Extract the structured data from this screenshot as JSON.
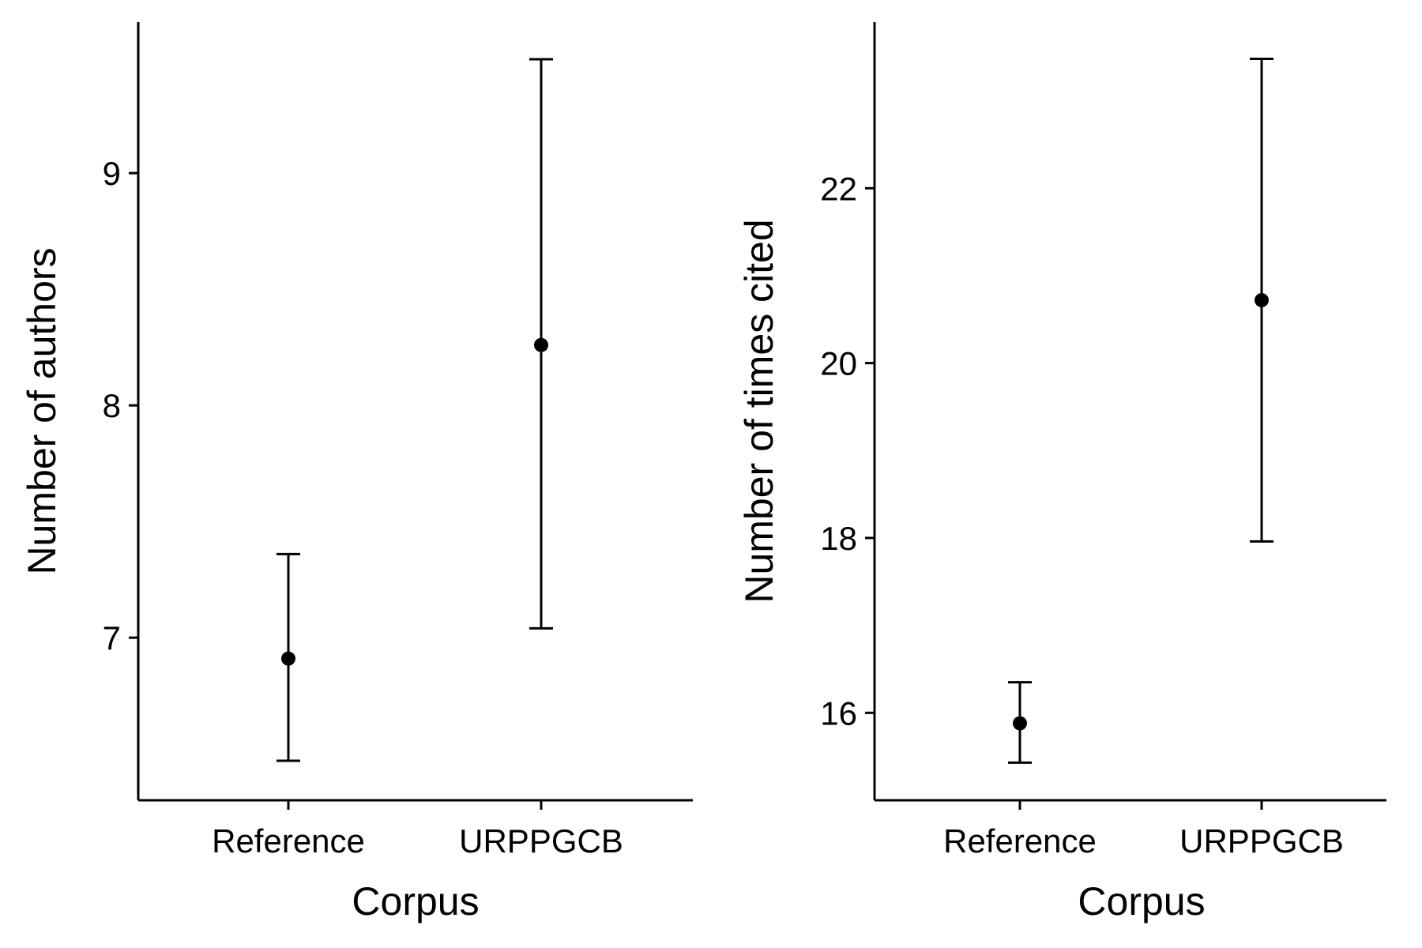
{
  "chart_data": [
    {
      "type": "errorbar",
      "xlabel": "Corpus",
      "ylabel": "Number of authors",
      "categories": [
        "Reference",
        "URPPGCB"
      ],
      "points": [
        {
          "category": "Reference",
          "mean": 6.91,
          "lower": 6.47,
          "upper": 7.36
        },
        {
          "category": "URPPGCB",
          "mean": 8.26,
          "lower": 7.04,
          "upper": 9.49
        }
      ],
      "yticks": [
        7,
        8,
        9
      ],
      "ylim": [
        6.3,
        9.65
      ],
      "grid": false,
      "legend": "none"
    },
    {
      "type": "errorbar",
      "xlabel": "Corpus",
      "ylabel": "Number of times cited",
      "categories": [
        "Reference",
        "URPPGCB"
      ],
      "points": [
        {
          "category": "Reference",
          "mean": 15.88,
          "lower": 15.43,
          "upper": 16.35
        },
        {
          "category": "URPPGCB",
          "mean": 20.72,
          "lower": 17.96,
          "upper": 23.48
        }
      ],
      "yticks": [
        16,
        18,
        20,
        22
      ],
      "ylim": [
        15.0,
        23.9
      ],
      "grid": false,
      "legend": "none"
    }
  ]
}
